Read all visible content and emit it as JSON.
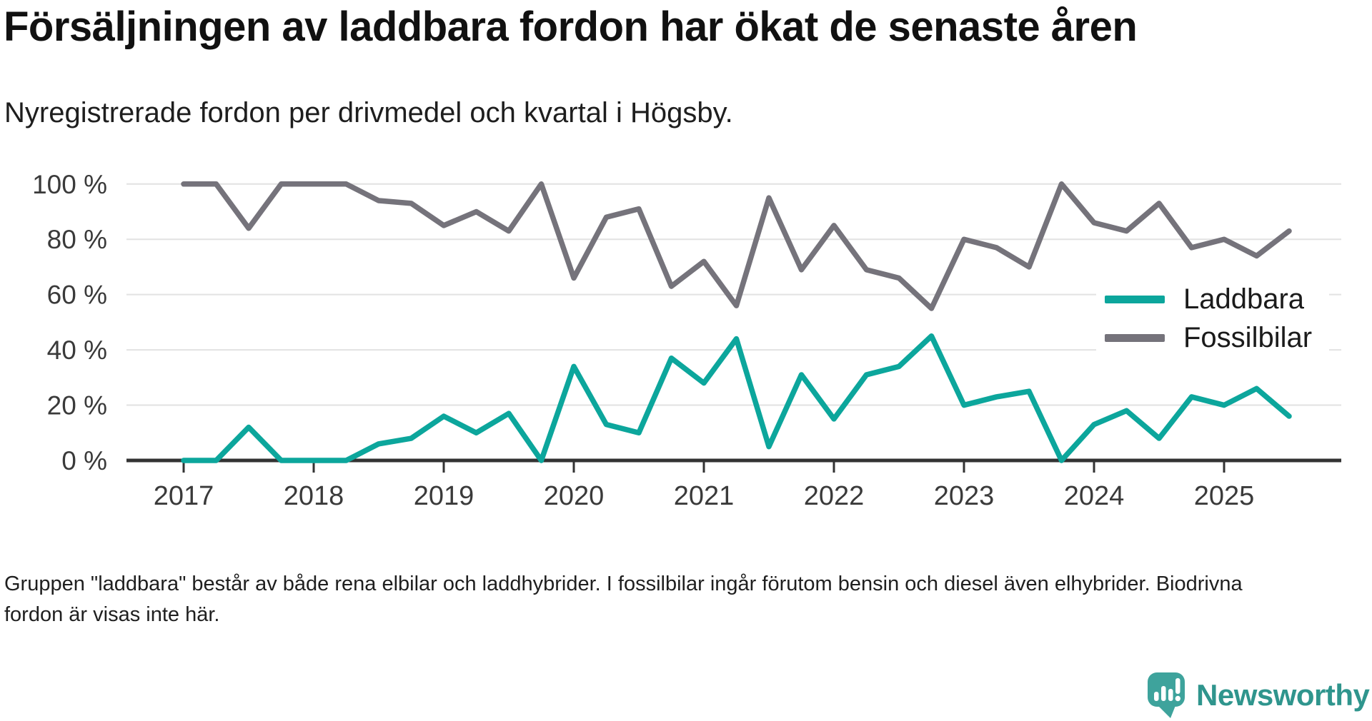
{
  "title": "Försäljningen av laddbara fordon har ökat de senaste åren",
  "subtitle": "Nyregistrerade fordon per drivmedel och kvartal i Högsby.",
  "footnote": "Gruppen \"laddbara\" består av både rena elbilar och laddhybrider. I fossilbilar ingår förutom bensin och diesel även elhybrider. Biodrivna fordon är visas inte här.",
  "brand": {
    "name": "Newsworthy",
    "text_color": "#2f958d",
    "icon_color": "#3ea39c",
    "icon": "speech-bubble-chart-icon"
  },
  "chart_data": {
    "type": "line",
    "title": "",
    "xlabel": "",
    "ylabel": "",
    "ylim": [
      0,
      100
    ],
    "grid": true,
    "legend_position": "middle-right",
    "x_frequency": "quarterly",
    "x": [
      "2017 Q1",
      "2017 Q2",
      "2017 Q3",
      "2017 Q4",
      "2018 Q1",
      "2018 Q2",
      "2018 Q3",
      "2018 Q4",
      "2019 Q1",
      "2019 Q2",
      "2019 Q3",
      "2019 Q4",
      "2020 Q1",
      "2020 Q2",
      "2020 Q3",
      "2020 Q4",
      "2021 Q1",
      "2021 Q2",
      "2021 Q3",
      "2021 Q4",
      "2022 Q1",
      "2022 Q2",
      "2022 Q3",
      "2022 Q4",
      "2023 Q1",
      "2023 Q2",
      "2023 Q3",
      "2023 Q4",
      "2024 Q1",
      "2024 Q2",
      "2024 Q3",
      "2024 Q4",
      "2025 Q1",
      "2025 Q2",
      "2025 Q3"
    ],
    "x_tick_labels": [
      "2017",
      "2018",
      "2019",
      "2020",
      "2021",
      "2022",
      "2023",
      "2024",
      "2025"
    ],
    "y_tick_labels": [
      "0 %",
      "20 %",
      "40 %",
      "60 %",
      "80 %",
      "100 %"
    ],
    "series": [
      {
        "name": "Laddbara",
        "color": "#0ca69c",
        "values": [
          0,
          0,
          12,
          0,
          0,
          0,
          6,
          8,
          16,
          10,
          17,
          0,
          34,
          13,
          10,
          37,
          28,
          44,
          5,
          31,
          15,
          31,
          34,
          45,
          20,
          23,
          25,
          0,
          13,
          18,
          8,
          23,
          20,
          26,
          16
        ]
      },
      {
        "name": "Fossilbilar",
        "color": "#75737b",
        "values": [
          100,
          100,
          84,
          100,
          100,
          100,
          94,
          93,
          85,
          90,
          83,
          100,
          66,
          88,
          91,
          63,
          72,
          56,
          95,
          69,
          85,
          69,
          66,
          55,
          80,
          77,
          70,
          100,
          86,
          83,
          93,
          77,
          80,
          74,
          83
        ]
      }
    ],
    "colors": {
      "gridline": "#e2e2e2",
      "axis": "#333333",
      "tick_text": "#3a3a3a"
    }
  }
}
